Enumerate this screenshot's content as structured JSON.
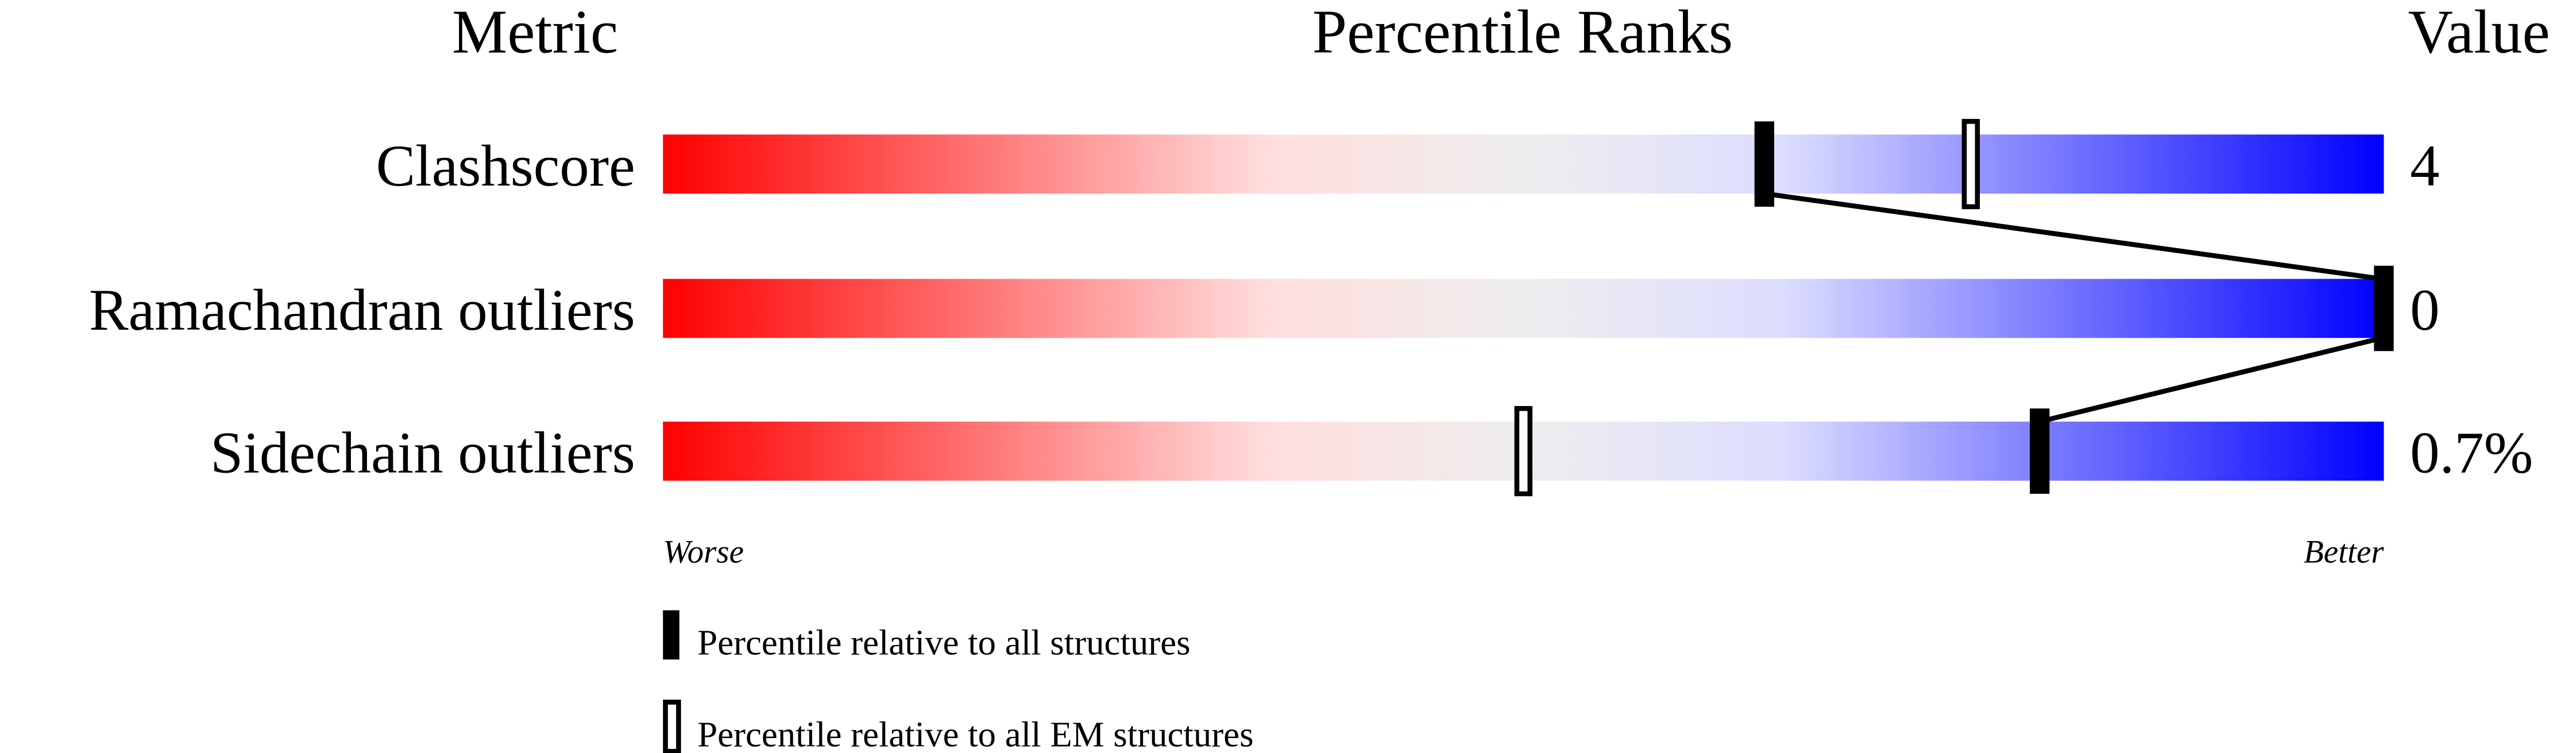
{
  "chart_data": {
    "type": "percentile-bars",
    "headers": {
      "metric": "Metric",
      "ranks": "Percentile Ranks",
      "value": "Value"
    },
    "xlim": [
      0,
      100
    ],
    "axis_labels": {
      "left": "Worse",
      "right": "Better"
    },
    "gradient_colors": [
      "#ff0000",
      "#ffdddd",
      "#eeeeee",
      "#ddddff",
      "#0000ff"
    ],
    "rows": [
      {
        "metric": "Clashscore",
        "value": "4",
        "percentile_all": 64,
        "percentile_em": 76
      },
      {
        "metric": "Ramachandran outliers",
        "value": "0",
        "percentile_all": 100,
        "percentile_em": 100
      },
      {
        "metric": "Sidechain outliers",
        "value": "0.7%",
        "percentile_all": 80,
        "percentile_em": 50
      }
    ],
    "legend": [
      {
        "style": "filled",
        "label": "Percentile relative to all structures"
      },
      {
        "style": "open",
        "label": "Percentile relative to all EM structures"
      }
    ]
  }
}
